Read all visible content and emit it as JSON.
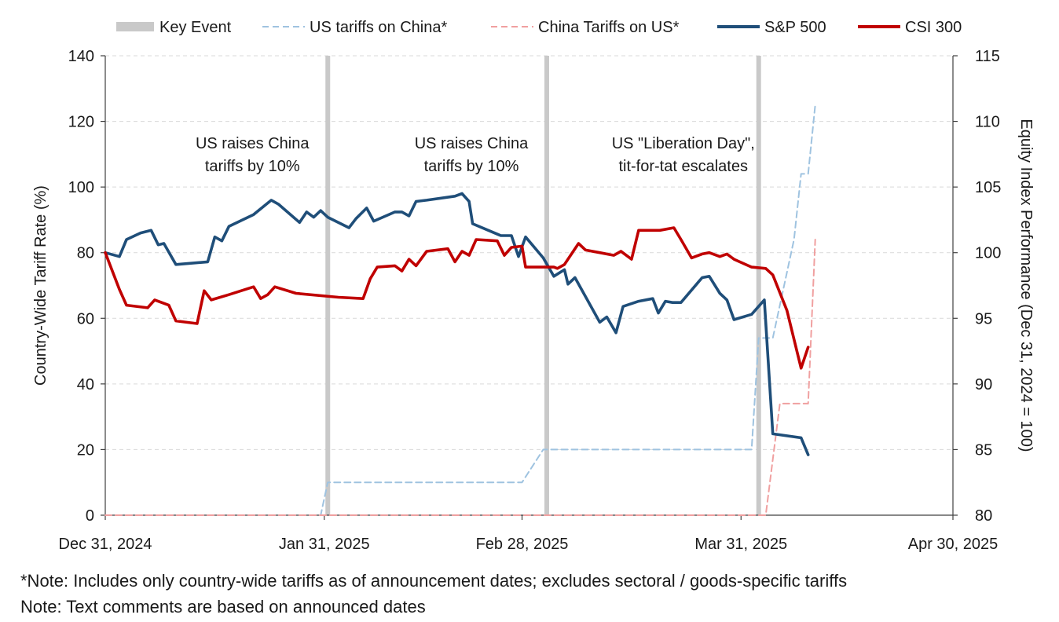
{
  "chart_data": {
    "type": "line",
    "legend": {
      "position": "top",
      "entries": [
        {
          "label": "Key Event",
          "color": "#c9c9c9",
          "style": "band"
        },
        {
          "label": "US tariffs on China*",
          "color": "#9fc3e0",
          "style": "dashed"
        },
        {
          "label": "China Tariffs on US*",
          "color": "#f0a0a0",
          "style": "dashed"
        },
        {
          "label": "S&P 500",
          "color": "#1f4e79",
          "style": "solid"
        },
        {
          "label": "CSI 300",
          "color": "#c00000",
          "style": "solid"
        }
      ]
    },
    "y_left": {
      "label": "Country-Wide Tariff Rate (%)",
      "min": 0,
      "max": 140,
      "ticks": [
        "0",
        "20",
        "40",
        "60",
        "80",
        "100",
        "120",
        "140"
      ]
    },
    "y_right": {
      "label": "Equity Index Performance (Dec 31, 2024 = 100)",
      "min": 80,
      "max": 115,
      "ticks": [
        "80",
        "85",
        "90",
        "95",
        "100",
        "105",
        "110",
        "115"
      ]
    },
    "x_axis": {
      "ticks": [
        {
          "label": "Dec 31, 2024",
          "day": 0
        },
        {
          "label": "Jan 31, 2025",
          "day": 31
        },
        {
          "label": "Feb 28, 2025",
          "day": 59
        },
        {
          "label": "Mar 31, 2025",
          "day": 90
        },
        {
          "label": "Apr 30, 2025",
          "day": 120
        }
      ]
    },
    "grid": "horizontal dashed",
    "key_events": [
      {
        "day": 31.5,
        "annotation": [
          "US raises China",
          "tariffs by 10%"
        ]
      },
      {
        "day": 62.5,
        "annotation": [
          "US raises China",
          "tariffs by 10%"
        ]
      },
      {
        "day": 92.5,
        "annotation": [
          "US \"Liberation Day\",",
          "tit-for-tat escalates"
        ]
      }
    ],
    "series": [
      {
        "name": "US tariffs on China*",
        "axis": "left",
        "color": "#9fc3e0",
        "dash": true,
        "points": [
          [
            0,
            0
          ],
          [
            30.5,
            0
          ],
          [
            31.5,
            10
          ],
          [
            59,
            10
          ],
          [
            62,
            20
          ],
          [
            91.5,
            20
          ],
          [
            92.5,
            54
          ],
          [
            94.5,
            54
          ],
          [
            97.5,
            84
          ],
          [
            98.5,
            104
          ],
          [
            99.5,
            104
          ],
          [
            100.5,
            125
          ]
        ]
      },
      {
        "name": "China Tariffs on US*",
        "axis": "left",
        "color": "#f0a0a0",
        "dash": true,
        "points": [
          [
            0,
            0
          ],
          [
            93.5,
            0
          ],
          [
            95.5,
            34
          ],
          [
            99.5,
            34
          ],
          [
            100.5,
            84
          ]
        ]
      },
      {
        "name": "S&P 500",
        "axis": "right",
        "color": "#1f4e79",
        "dash": false,
        "points": [
          [
            0,
            100
          ],
          [
            2,
            99.7
          ],
          [
            3,
            101
          ],
          [
            5,
            101.5
          ],
          [
            6.5,
            101.7
          ],
          [
            7.5,
            100.6
          ],
          [
            8.3,
            100.7
          ],
          [
            10,
            99.1
          ],
          [
            14.5,
            99.3
          ],
          [
            15.5,
            101.2
          ],
          [
            16.5,
            100.9
          ],
          [
            17.5,
            102
          ],
          [
            21,
            102.9
          ],
          [
            23.5,
            104
          ],
          [
            24.5,
            103.7
          ],
          [
            27.5,
            102.3
          ],
          [
            28.5,
            103.1
          ],
          [
            29.5,
            102.7
          ],
          [
            30.5,
            103.2
          ],
          [
            31.5,
            102.7
          ],
          [
            34.5,
            101.9
          ],
          [
            35.5,
            102.6
          ],
          [
            37,
            103.4
          ],
          [
            38,
            102.4
          ],
          [
            41,
            103.1
          ],
          [
            42,
            103.1
          ],
          [
            43,
            102.8
          ],
          [
            44,
            103.9
          ],
          [
            45.5,
            104
          ],
          [
            49.5,
            104.3
          ],
          [
            50.5,
            104.5
          ],
          [
            51.5,
            103.9
          ],
          [
            52,
            102.2
          ],
          [
            56,
            101.3
          ],
          [
            57.5,
            101.3
          ],
          [
            58.5,
            99.7
          ],
          [
            59.5,
            101.2
          ],
          [
            62,
            99.6
          ],
          [
            63.5,
            98.2
          ],
          [
            65,
            98.7
          ],
          [
            65.5,
            97.6
          ],
          [
            66.5,
            98.1
          ],
          [
            70,
            94.7
          ],
          [
            71,
            95.1
          ],
          [
            72.3,
            93.9
          ],
          [
            73.3,
            95.9
          ],
          [
            75.5,
            96.3
          ],
          [
            77.5,
            96.5
          ],
          [
            78.3,
            95.4
          ],
          [
            79.3,
            96.3
          ],
          [
            80.3,
            96.2
          ],
          [
            81.5,
            96.2
          ],
          [
            84.5,
            98.1
          ],
          [
            85.5,
            98.2
          ],
          [
            87,
            96.9
          ],
          [
            88,
            96.4
          ],
          [
            89,
            94.9
          ],
          [
            91.5,
            95.3
          ],
          [
            93.3,
            96.4
          ],
          [
            94.5,
            86.2
          ],
          [
            98.5,
            85.9
          ],
          [
            99.5,
            84.6
          ]
        ]
      },
      {
        "name": "CSI 300",
        "axis": "right",
        "color": "#c00000",
        "dash": false,
        "points": [
          [
            0,
            100
          ],
          [
            2,
            97.2
          ],
          [
            3,
            96
          ],
          [
            6,
            95.8
          ],
          [
            7,
            96.4
          ],
          [
            9,
            96
          ],
          [
            10,
            94.8
          ],
          [
            13,
            94.6
          ],
          [
            14,
            97.1
          ],
          [
            15,
            96.4
          ],
          [
            17.5,
            96.8
          ],
          [
            21,
            97.4
          ],
          [
            22,
            96.5
          ],
          [
            23,
            96.8
          ],
          [
            24,
            97.4
          ],
          [
            27,
            96.9
          ],
          [
            33,
            96.6
          ],
          [
            36.5,
            96.5
          ],
          [
            37.5,
            98
          ],
          [
            38.5,
            98.9
          ],
          [
            41,
            99
          ],
          [
            42,
            98.6
          ],
          [
            43,
            99.5
          ],
          [
            44,
            99
          ],
          [
            45.5,
            100.1
          ],
          [
            48.5,
            100.3
          ],
          [
            49.5,
            99.3
          ],
          [
            50.5,
            100.1
          ],
          [
            51.5,
            99.8
          ],
          [
            52.5,
            101
          ],
          [
            55.5,
            100.9
          ],
          [
            56.5,
            99.8
          ],
          [
            57.5,
            100.4
          ],
          [
            59,
            100.5
          ],
          [
            59.5,
            98.9
          ],
          [
            63.5,
            98.9
          ],
          [
            64,
            98.8
          ],
          [
            65,
            99.1
          ],
          [
            67,
            100.7
          ],
          [
            68,
            100.2
          ],
          [
            70,
            100
          ],
          [
            72,
            99.8
          ],
          [
            73,
            100.1
          ],
          [
            74.5,
            99.5
          ],
          [
            75.5,
            101.7
          ],
          [
            77.5,
            101.7
          ],
          [
            78.5,
            101.7
          ],
          [
            80.5,
            101.9
          ],
          [
            81.5,
            101
          ],
          [
            83,
            99.6
          ],
          [
            84.5,
            99.9
          ],
          [
            85.5,
            100
          ],
          [
            87,
            99.7
          ],
          [
            88,
            99.9
          ],
          [
            89,
            99.5
          ],
          [
            91.5,
            98.9
          ],
          [
            93.5,
            98.8
          ],
          [
            94.5,
            98.3
          ],
          [
            96.5,
            95.6
          ],
          [
            98.5,
            91.2
          ],
          [
            99.5,
            92.8
          ]
        ]
      }
    ]
  },
  "notes": {
    "line1": "*Note:  Includes only country-wide tariffs as of announcement dates; excludes sectoral / goods-specific tariffs",
    "line2": "Note: Text comments are based on announced dates"
  }
}
